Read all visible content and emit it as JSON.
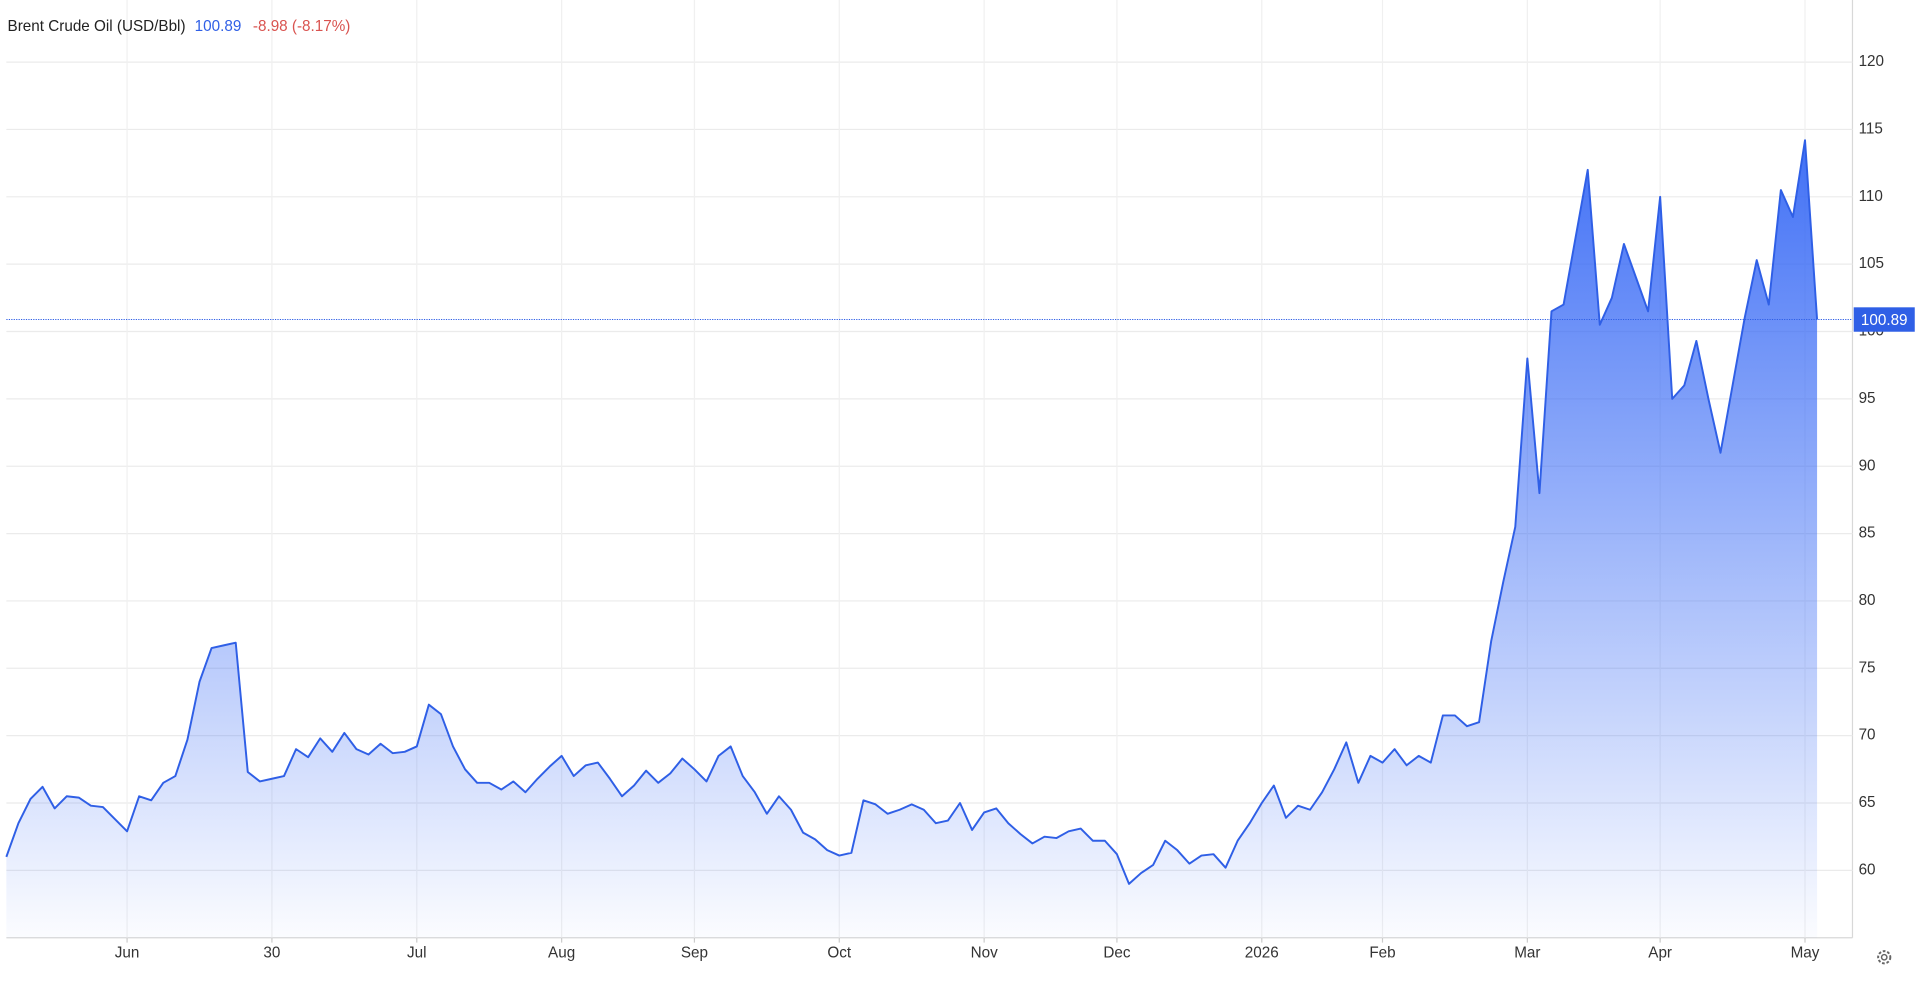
{
  "chart_data": {
    "type": "area",
    "title": "Brent Crude Oil (USD/Bbl)",
    "last_value": 100.89,
    "change_label": "-8.98 (-8.17%)",
    "color": "#2f5fe6",
    "title_color": "#222222",
    "last_value_color": "#2f5fe6",
    "change_color": "#d9534f",
    "grid": true,
    "ylim": [
      55,
      125
    ],
    "yticks": [
      60,
      65,
      70,
      75,
      80,
      85,
      90,
      95,
      100,
      105,
      110,
      115,
      120
    ],
    "categories": [
      null,
      null,
      null,
      null,
      null,
      null,
      null,
      null,
      null,
      null,
      "Jun",
      null,
      null,
      null,
      null,
      null,
      null,
      null,
      null,
      null,
      null,
      null,
      "30",
      null,
      null,
      null,
      null,
      null,
      null,
      null,
      null,
      null,
      null,
      null,
      "Jul",
      null,
      null,
      null,
      null,
      null,
      null,
      null,
      null,
      null,
      null,
      null,
      "Aug",
      null,
      null,
      null,
      null,
      null,
      null,
      null,
      null,
      null,
      null,
      "Sep",
      null,
      null,
      null,
      null,
      null,
      null,
      null,
      null,
      null,
      null,
      null,
      "Oct",
      null,
      null,
      null,
      null,
      null,
      null,
      null,
      null,
      null,
      null,
      null,
      "Nov",
      null,
      null,
      null,
      null,
      null,
      null,
      null,
      null,
      null,
      null,
      "Dec",
      null,
      null,
      null,
      null,
      null,
      null,
      null,
      null,
      null,
      null,
      null,
      "2026",
      null,
      null,
      null,
      null,
      null,
      null,
      null,
      null,
      null,
      "Feb",
      null,
      null,
      null,
      null,
      null,
      null,
      null,
      null,
      null,
      null,
      null,
      "Mar",
      null,
      null,
      null,
      null,
      null,
      null,
      null,
      null,
      null,
      null,
      "Apr",
      null,
      null,
      null,
      null,
      null,
      null,
      null,
      null,
      null,
      null,
      null,
      "May",
      null
    ],
    "values": [
      61,
      63.5,
      65.3,
      66.2,
      64.6,
      65.5,
      65.4,
      64.8,
      64.7,
      63.8,
      62.9,
      65.5,
      65.2,
      66.5,
      67,
      69.7,
      74,
      76.5,
      76.7,
      76.9,
      67.3,
      66.6,
      66.8,
      67,
      69,
      68.4,
      69.8,
      68.8,
      70.2,
      69,
      68.6,
      69.4,
      68.7,
      68.8,
      69.2,
      72.3,
      71.6,
      69.2,
      67.5,
      66.5,
      66.5,
      66,
      66.6,
      65.8,
      66.8,
      67.7,
      68.5,
      67,
      67.8,
      68,
      66.8,
      65.5,
      66.3,
      67.4,
      66.5,
      67.2,
      68.3,
      67.5,
      66.6,
      68.5,
      69.2,
      67,
      65.8,
      64.2,
      65.5,
      64.5,
      62.8,
      62.3,
      61.5,
      61.1,
      61.3,
      65.2,
      64.9,
      64.2,
      64.5,
      64.9,
      64.5,
      63.5,
      63.7,
      65,
      63,
      64.3,
      64.6,
      63.5,
      62.7,
      62,
      62.5,
      62.4,
      62.9,
      63.1,
      62.2,
      62.2,
      61.2,
      59,
      59.8,
      60.4,
      62.2,
      61.5,
      60.5,
      61.1,
      61.2,
      60.2,
      62.2,
      63.5,
      65,
      66.3,
      63.9,
      64.8,
      64.5,
      65.8,
      67.5,
      69.5,
      66.5,
      68.5,
      68,
      69,
      67.8,
      68.5,
      68,
      71.5,
      71.5,
      70.7,
      71,
      77,
      81.4,
      85.5,
      98,
      88,
      101.5,
      102,
      107,
      112,
      100.5,
      102.5,
      106.5,
      104,
      101.5,
      110,
      95,
      96,
      99.3,
      95,
      91,
      96,
      101,
      105.3,
      102,
      110.5,
      108.5,
      114.2,
      100.89
    ]
  }
}
